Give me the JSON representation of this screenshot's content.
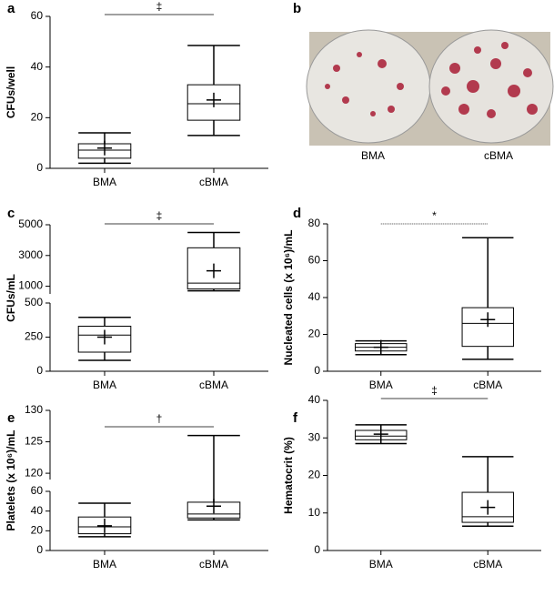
{
  "chart_data": [
    {
      "type": "box",
      "panel": "a",
      "ylabel": "CFUs/well",
      "categories": [
        "BMA",
        "cBMA"
      ],
      "boxes": [
        {
          "min": 2,
          "q1": 4,
          "median": 7.2,
          "q3": 9.7,
          "max": 14,
          "mean": 8
        },
        {
          "min": 13,
          "q1": 19,
          "median": 25.5,
          "q3": 33,
          "max": 48.5,
          "mean": 27
        }
      ],
      "ylim": [
        0,
        60
      ],
      "yticks": [
        0,
        20,
        40,
        60
      ],
      "significance": "‡",
      "color": "#000000"
    },
    {
      "type": "box",
      "panel": "c",
      "ylabel": "CFUs/mL",
      "categories": [
        "BMA",
        "cBMA"
      ],
      "boxes": [
        {
          "min": 80,
          "q1": 140,
          "median": 265,
          "q3": 330,
          "max": 395,
          "mean": 250
        },
        {
          "min": 700,
          "q1": 820,
          "median": 1200,
          "q3": 3500,
          "max": 4500,
          "mean": 2000
        }
      ],
      "segments": [
        {
          "ylim": [
            0,
            500
          ],
          "yticks": [
            0,
            250,
            500
          ]
        },
        {
          "ylim": [
            500,
            5000
          ],
          "yticks": [
            1000,
            3000,
            5000
          ]
        }
      ],
      "significance": "‡",
      "color": "#000000"
    },
    {
      "type": "box",
      "panel": "d",
      "ylabel": "Nucleated cells (x 10⁶)/mL",
      "categories": [
        "BMA",
        "cBMA"
      ],
      "boxes": [
        {
          "min": 9,
          "q1": 11,
          "median": 13,
          "q3": 15,
          "max": 16.5,
          "mean": 13
        },
        {
          "min": 6.5,
          "q1": 13.5,
          "median": 26,
          "q3": 34.5,
          "max": 72.5,
          "mean": 28
        }
      ],
      "ylim": [
        0,
        80
      ],
      "yticks": [
        0,
        20,
        40,
        60,
        80
      ],
      "significance": "*",
      "color": "#000000"
    },
    {
      "type": "box",
      "panel": "e",
      "ylabel": "Platelets (x 10⁶)/mL",
      "categories": [
        "BMA",
        "cBMA"
      ],
      "boxes": [
        {
          "min": 14,
          "q1": 17,
          "median": 24,
          "q3": 34,
          "max": 48,
          "mean": 25
        },
        {
          "min": 31,
          "q1": 33,
          "median": 37,
          "q3": 49,
          "max": 126,
          "mean": 45
        }
      ],
      "segments": [
        {
          "ylim": [
            0,
            60
          ],
          "yticks": [
            0,
            20,
            40,
            60
          ]
        },
        {
          "ylim": [
            119,
            130
          ],
          "yticks": [
            120,
            125,
            130
          ]
        }
      ],
      "significance": "†",
      "color": "#000000"
    },
    {
      "type": "box",
      "panel": "f",
      "ylabel": "Hematocrit (%)",
      "categories": [
        "BMA",
        "cBMA"
      ],
      "boxes": [
        {
          "min": 28.5,
          "q1": 29.5,
          "median": 30.5,
          "q3": 32,
          "max": 33.5,
          "mean": 31
        },
        {
          "min": 6.5,
          "q1": 7.5,
          "median": 9,
          "q3": 15.5,
          "max": 25,
          "mean": 11.5
        }
      ],
      "ylim": [
        0,
        40
      ],
      "yticks": [
        0,
        10,
        20,
        30,
        40
      ],
      "significance": "‡",
      "color": "#000000"
    }
  ],
  "photo_panel": {
    "panel": "b",
    "captions": [
      "BMA",
      "cBMA"
    ]
  }
}
